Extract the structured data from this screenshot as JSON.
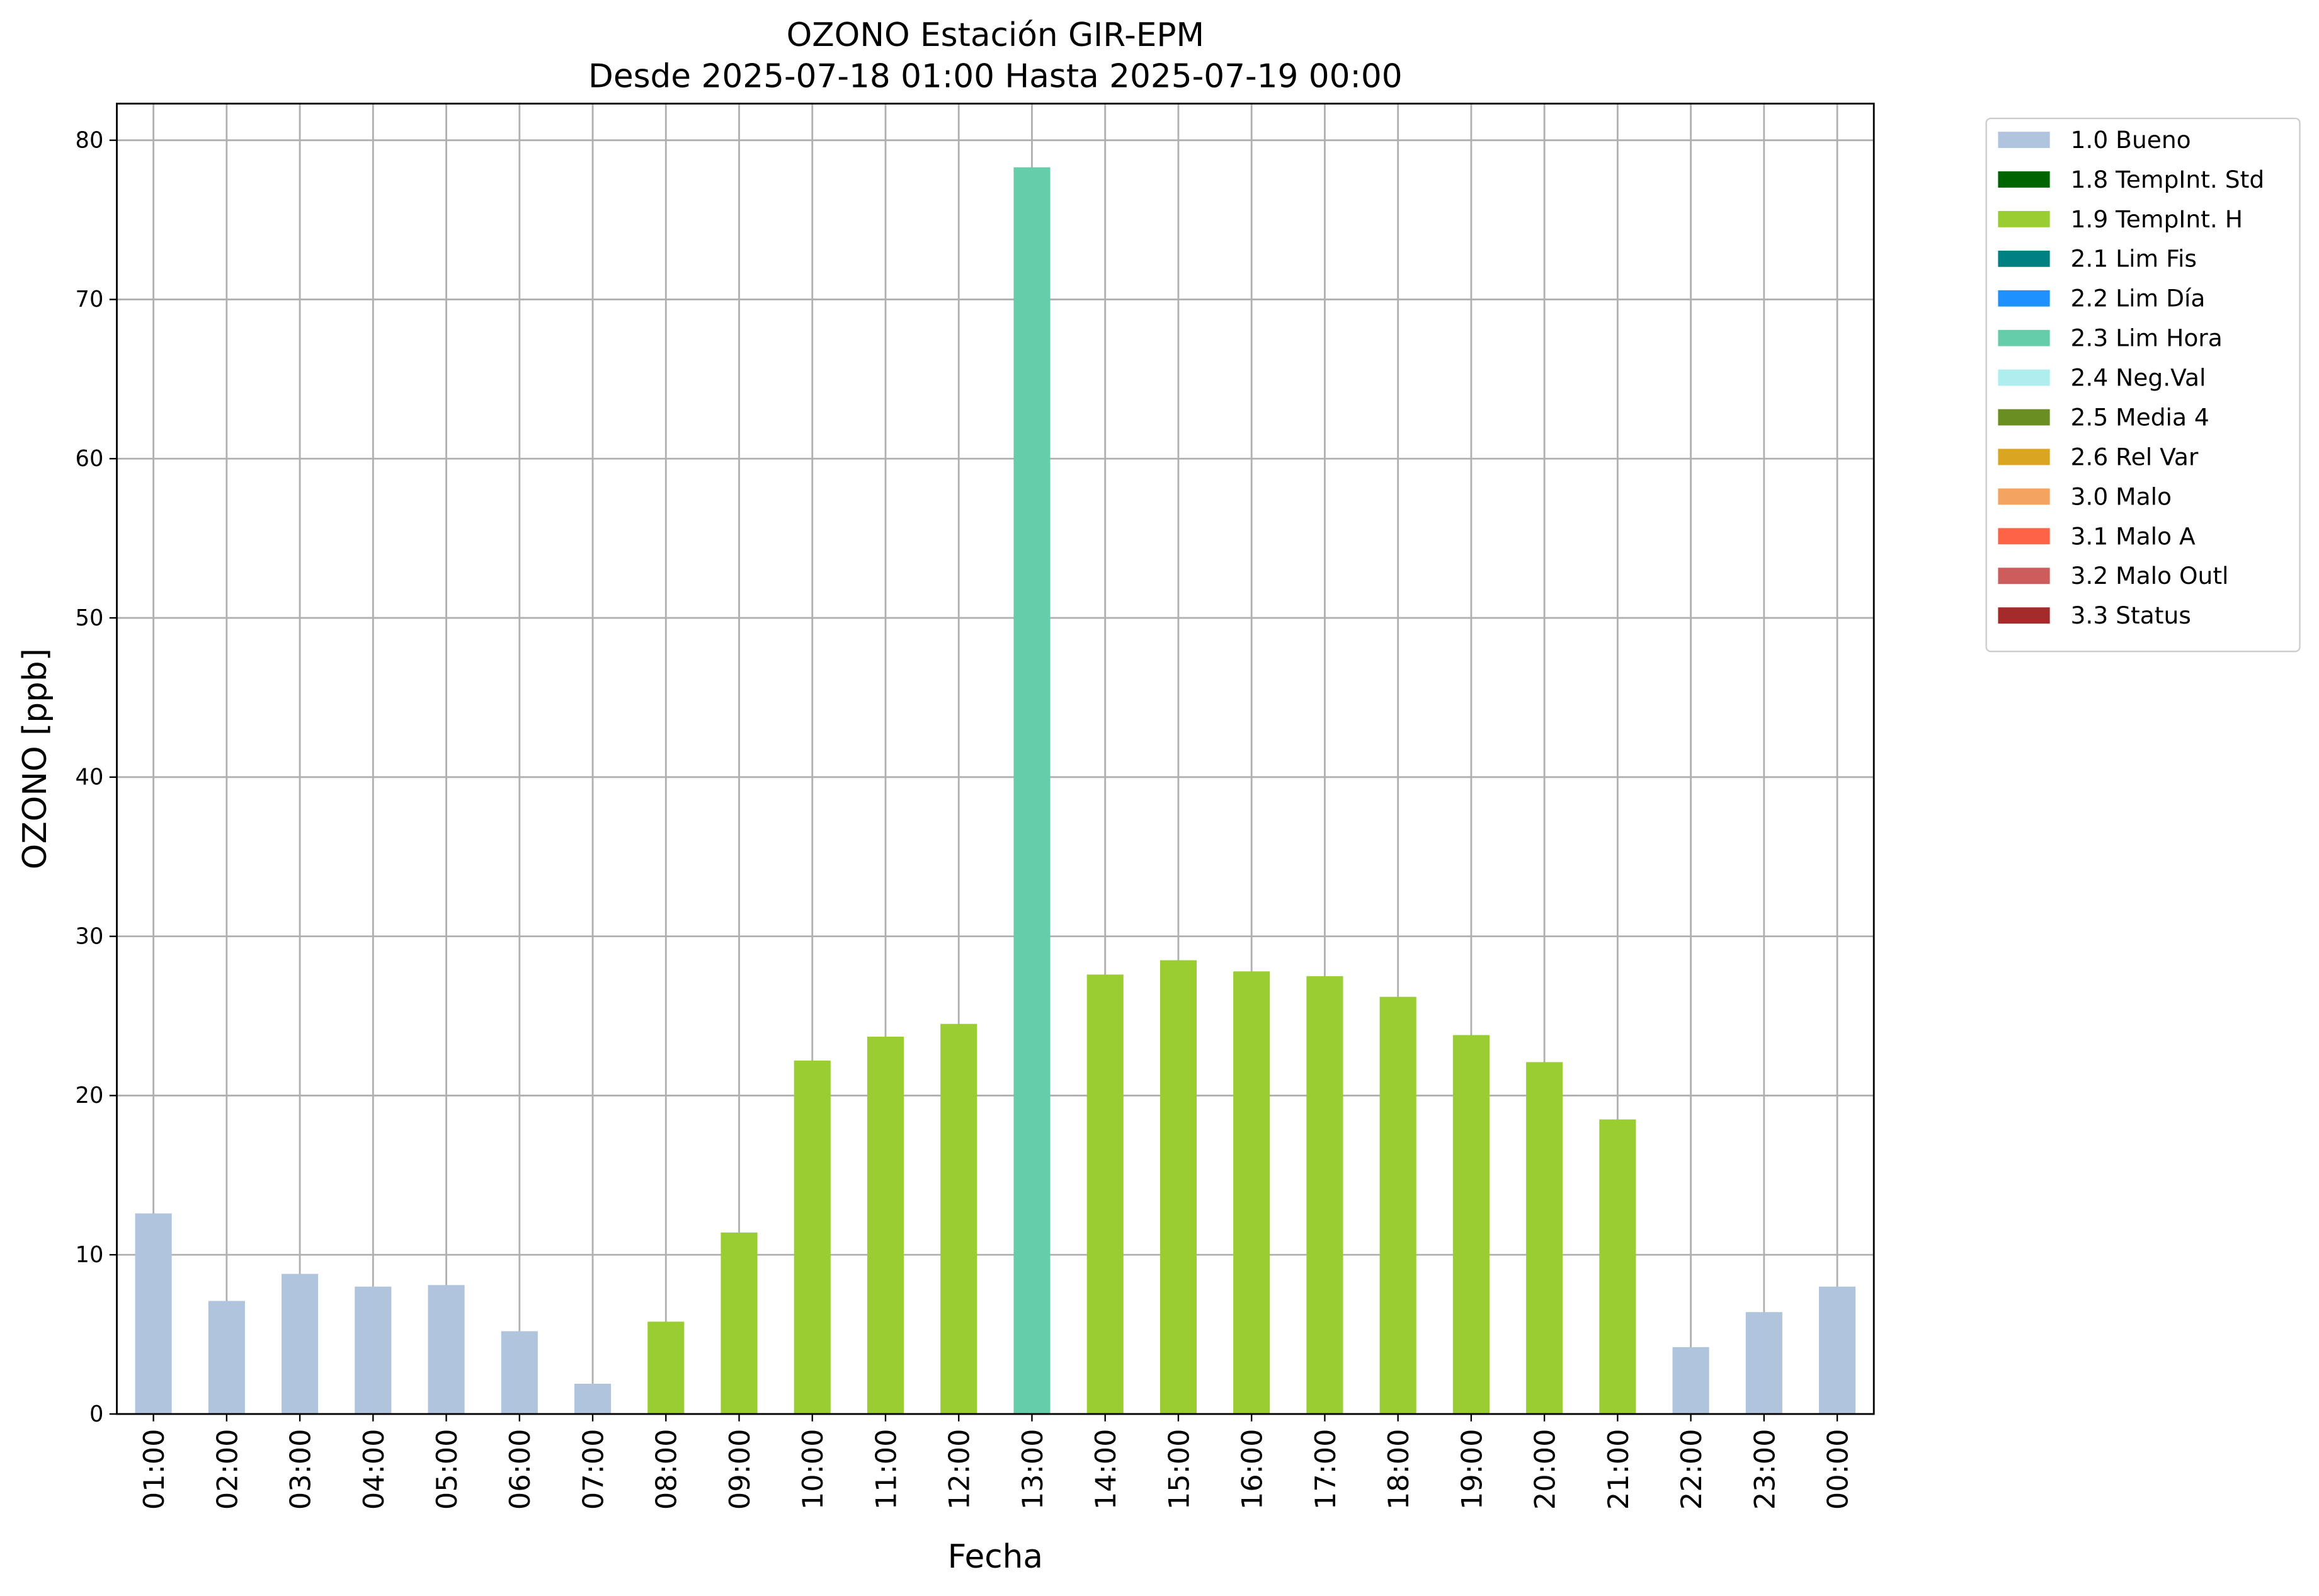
{
  "chart_data": {
    "type": "bar",
    "stacked": true,
    "title": "OZONO Estación GIR-EPM",
    "subtitle": "Desde 2025-07-18 01:00 Hasta 2025-07-19 00:00",
    "x_label": "Fecha",
    "y_label": "OZONO [ppb]",
    "categories": [
      "01:00",
      "02:00",
      "03:00",
      "04:00",
      "05:00",
      "06:00",
      "07:00",
      "08:00",
      "09:00",
      "10:00",
      "11:00",
      "12:00",
      "13:00",
      "14:00",
      "15:00",
      "16:00",
      "17:00",
      "18:00",
      "19:00",
      "20:00",
      "21:00",
      "22:00",
      "23:00",
      "00:00"
    ],
    "ylim": [
      0,
      82.3
    ],
    "yticks": [
      0,
      10,
      20,
      30,
      40,
      50,
      60,
      70,
      80
    ],
    "grid": true,
    "legend": "outside right",
    "series": [
      {
        "name": "1.0 Bueno",
        "color": "#b0c4de",
        "values": [
          12.6,
          7.1,
          8.8,
          8.0,
          8.1,
          5.2,
          1.9,
          null,
          null,
          null,
          null,
          null,
          null,
          null,
          null,
          null,
          null,
          null,
          null,
          null,
          null,
          4.2,
          6.4,
          8.0
        ]
      },
      {
        "name": "1.8 TempInt. Std",
        "color": "#006400",
        "values": [
          null,
          null,
          null,
          null,
          null,
          null,
          null,
          null,
          null,
          null,
          null,
          null,
          null,
          null,
          null,
          null,
          null,
          null,
          null,
          null,
          null,
          null,
          null,
          null
        ]
      },
      {
        "name": "1.9 TempInt. H",
        "color": "#9acd32",
        "values": [
          null,
          null,
          null,
          null,
          null,
          null,
          null,
          5.8,
          11.4,
          22.2,
          23.7,
          24.5,
          null,
          27.6,
          28.5,
          27.8,
          27.5,
          26.2,
          23.8,
          22.1,
          18.5,
          null,
          null,
          null
        ]
      },
      {
        "name": "2.1 Lim Fis",
        "color": "#008080",
        "values": [
          null,
          null,
          null,
          null,
          null,
          null,
          null,
          null,
          null,
          null,
          null,
          null,
          null,
          null,
          null,
          null,
          null,
          null,
          null,
          null,
          null,
          null,
          null,
          null
        ]
      },
      {
        "name": "2.2 Lim Día",
        "color": "#1e90ff",
        "values": [
          null,
          null,
          null,
          null,
          null,
          null,
          null,
          null,
          null,
          null,
          null,
          null,
          null,
          null,
          null,
          null,
          null,
          null,
          null,
          null,
          null,
          null,
          null,
          null
        ]
      },
      {
        "name": "2.3 Lim Hora",
        "color": "#66cdaa",
        "values": [
          null,
          null,
          null,
          null,
          null,
          null,
          null,
          null,
          null,
          null,
          null,
          null,
          78.3,
          null,
          null,
          null,
          null,
          null,
          null,
          null,
          null,
          null,
          null,
          null
        ]
      },
      {
        "name": "2.4 Neg.Val",
        "color": "#afeeee",
        "values": [
          null,
          null,
          null,
          null,
          null,
          null,
          null,
          null,
          null,
          null,
          null,
          null,
          null,
          null,
          null,
          null,
          null,
          null,
          null,
          null,
          null,
          null,
          null,
          null
        ]
      },
      {
        "name": "2.5 Media 4",
        "color": "#6b8e23",
        "values": [
          null,
          null,
          null,
          null,
          null,
          null,
          null,
          null,
          null,
          null,
          null,
          null,
          null,
          null,
          null,
          null,
          null,
          null,
          null,
          null,
          null,
          null,
          null,
          null
        ]
      },
      {
        "name": "2.6 Rel Var",
        "color": "#daa520",
        "values": [
          null,
          null,
          null,
          null,
          null,
          null,
          null,
          null,
          null,
          null,
          null,
          null,
          null,
          null,
          null,
          null,
          null,
          null,
          null,
          null,
          null,
          null,
          null,
          null
        ]
      },
      {
        "name": "3.0 Malo",
        "color": "#f4a460",
        "values": [
          null,
          null,
          null,
          null,
          null,
          null,
          null,
          null,
          null,
          null,
          null,
          null,
          null,
          null,
          null,
          null,
          null,
          null,
          null,
          null,
          null,
          null,
          null,
          null
        ]
      },
      {
        "name": "3.1 Malo A",
        "color": "#ff6347",
        "values": [
          null,
          null,
          null,
          null,
          null,
          null,
          null,
          null,
          null,
          null,
          null,
          null,
          null,
          null,
          null,
          null,
          null,
          null,
          null,
          null,
          null,
          null,
          null,
          null
        ]
      },
      {
        "name": "3.2 Malo Outl",
        "color": "#cd5c5c",
        "values": [
          null,
          null,
          null,
          null,
          null,
          null,
          null,
          null,
          null,
          null,
          null,
          null,
          null,
          null,
          null,
          null,
          null,
          null,
          null,
          null,
          null,
          null,
          null,
          null
        ]
      },
      {
        "name": "3.3 Status",
        "color": "#a52a2a",
        "values": [
          null,
          null,
          null,
          null,
          null,
          null,
          null,
          null,
          null,
          null,
          null,
          null,
          null,
          null,
          null,
          null,
          null,
          null,
          null,
          null,
          null,
          null,
          null,
          null
        ]
      }
    ]
  }
}
